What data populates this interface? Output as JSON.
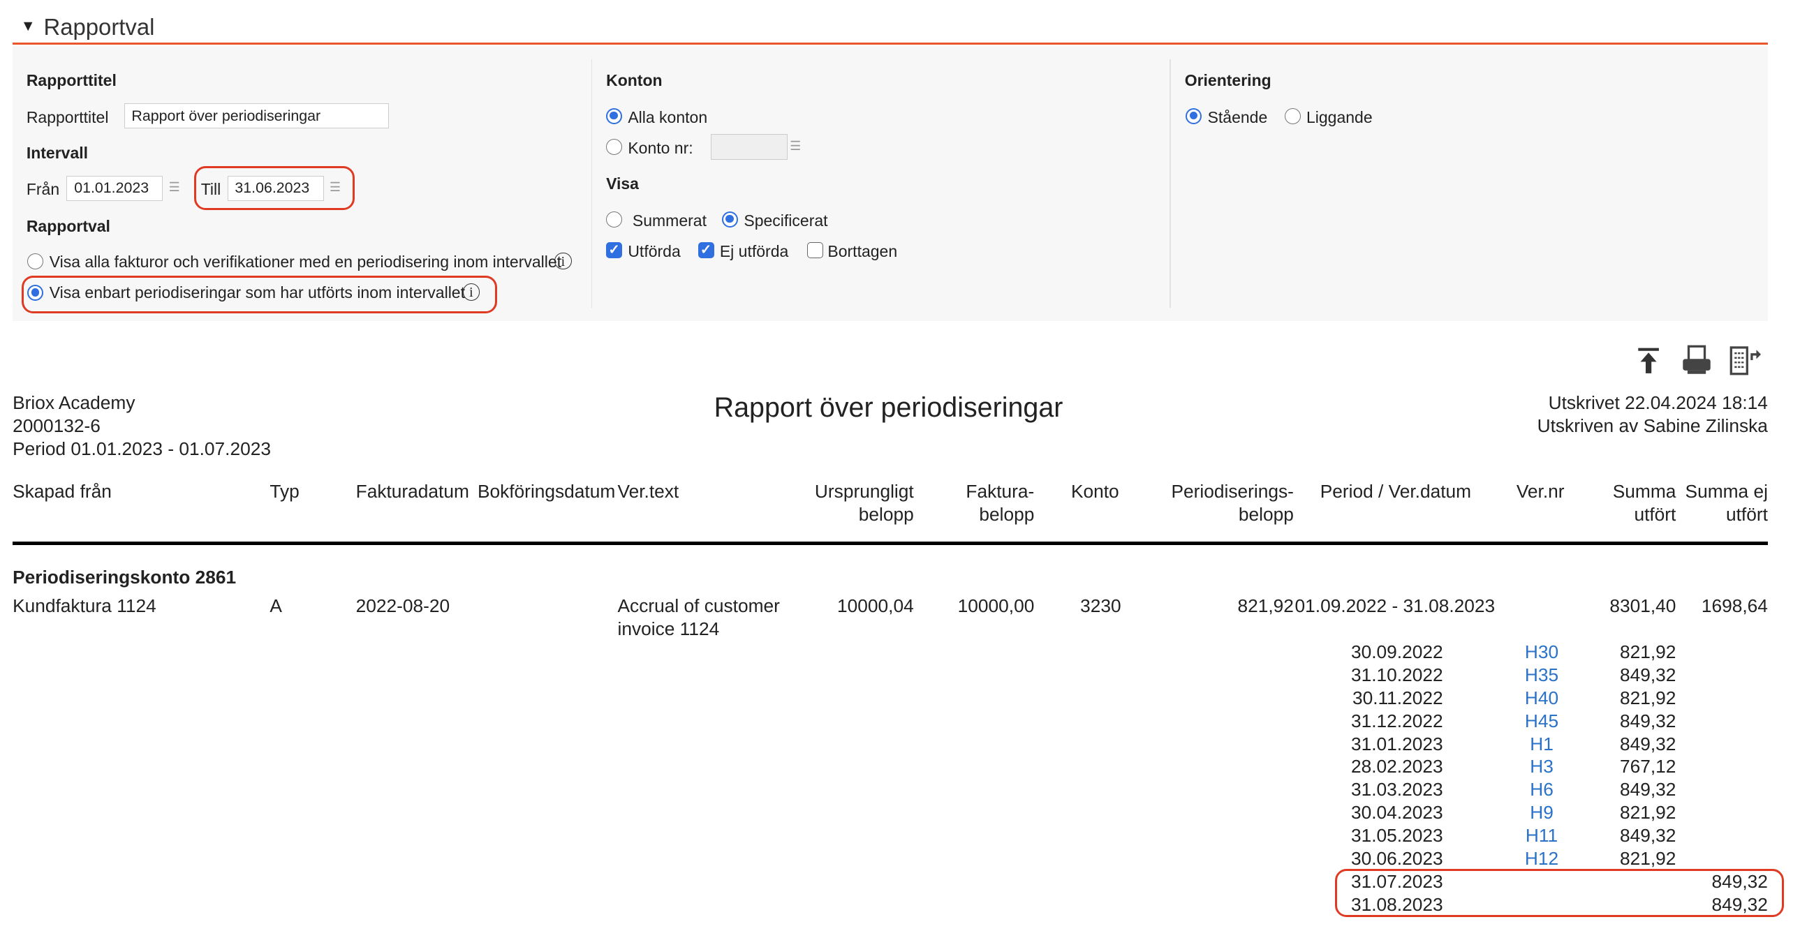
{
  "section": {
    "title": "Rapportval",
    "toggle_icon": "caret-down-icon"
  },
  "form": {
    "rapporttitel": {
      "heading": "Rapporttitel",
      "label": "Rapporttitel",
      "value": "Rapport över periodiseringar"
    },
    "intervall": {
      "heading": "Intervall",
      "from_label": "Från",
      "from_value": "01.01.2023",
      "to_label": "Till",
      "to_value": "31.06.2023"
    },
    "rapportval": {
      "heading": "Rapportval",
      "options": [
        {
          "label": "Visa alla fakturor och verifikationer med en periodisering inom intervallet",
          "selected": false
        },
        {
          "label": "Visa enbart periodiseringar som har utförts inom intervallet",
          "selected": true
        }
      ]
    },
    "konton": {
      "heading": "Konton",
      "all_label": "Alla konton",
      "all_selected": true,
      "nr_label": "Konto nr:",
      "nr_value": ""
    },
    "visa": {
      "heading": "Visa",
      "summerat": "Summerat",
      "specificerat": "Specificerat",
      "selected": "Specificerat",
      "checks": [
        {
          "label": "Utförda",
          "checked": true
        },
        {
          "label": "Ej utförda",
          "checked": true
        },
        {
          "label": "Borttagen",
          "checked": false
        }
      ]
    },
    "orientering": {
      "heading": "Orientering",
      "staende": "Stående",
      "liggande": "Liggande",
      "selected": "Stående"
    }
  },
  "toolbar": {
    "icons": [
      "upload-top-icon",
      "print-icon",
      "export-report-icon"
    ]
  },
  "report": {
    "company": "Briox Academy",
    "org_nr": "2000132-6",
    "period": "Period 01.01.2023 - 01.07.2023",
    "title": "Rapport över periodiseringar",
    "printed": "Utskrivet 22.04.2024 18:14",
    "printed_by": "Utskriven av Sabine Zilinska",
    "columns": {
      "skapad": "Skapad från",
      "typ": "Typ",
      "fakturadatum": "Fakturadatum",
      "bokforingsdatum": "Bokföringsdatum",
      "vertext": "Ver.text",
      "urspr1": "Ursprungligt",
      "urspr2": "belopp",
      "fakt1": "Faktura-",
      "fakt2": "belopp",
      "konto": "Konto",
      "per1": "Periodiserings-",
      "per2": "belopp",
      "period": "Period / Ver.datum",
      "vernr": "Ver.nr",
      "su1": "Summa",
      "su2": "utfört",
      "sej1": "Summa ej",
      "sej2": "utfört"
    },
    "group": "Periodiseringskonto 2861",
    "row": {
      "skapad": "Kundfaktura 1124",
      "typ": "A",
      "fakturadatum": "2022-08-20",
      "vertext1": "Accrual of customer",
      "vertext2": "invoice 1124",
      "urspr": "10000,04",
      "fakt": "10000,00",
      "konto": "3230",
      "per": "821,92",
      "period": "01.09.2022 - 31.08.2023",
      "su": "8301,40",
      "sej": "1698,64"
    },
    "details": [
      {
        "date": "30.09.2022",
        "vernr": "H30",
        "utfort": "821,92",
        "ej": ""
      },
      {
        "date": "31.10.2022",
        "vernr": "H35",
        "utfort": "849,32",
        "ej": ""
      },
      {
        "date": "30.11.2022",
        "vernr": "H40",
        "utfort": "821,92",
        "ej": ""
      },
      {
        "date": "31.12.2022",
        "vernr": "H45",
        "utfort": "849,32",
        "ej": ""
      },
      {
        "date": "31.01.2023",
        "vernr": "H1",
        "utfort": "849,32",
        "ej": ""
      },
      {
        "date": "28.02.2023",
        "vernr": "H3",
        "utfort": "767,12",
        "ej": ""
      },
      {
        "date": "31.03.2023",
        "vernr": "H6",
        "utfort": "849,32",
        "ej": ""
      },
      {
        "date": "30.04.2023",
        "vernr": "H9",
        "utfort": "821,92",
        "ej": ""
      },
      {
        "date": "31.05.2023",
        "vernr": "H11",
        "utfort": "849,32",
        "ej": ""
      },
      {
        "date": "30.06.2023",
        "vernr": "H12",
        "utfort": "821,92",
        "ej": ""
      },
      {
        "date": "31.07.2023",
        "vernr": "",
        "utfort": "",
        "ej": "849,32"
      },
      {
        "date": "31.08.2023",
        "vernr": "",
        "utfort": "",
        "ej": "849,32"
      }
    ]
  },
  "colors": {
    "accent": "#e8562a",
    "highlight": "#e03a22",
    "link": "#2a72c8",
    "radio": "#2f6fe0"
  }
}
